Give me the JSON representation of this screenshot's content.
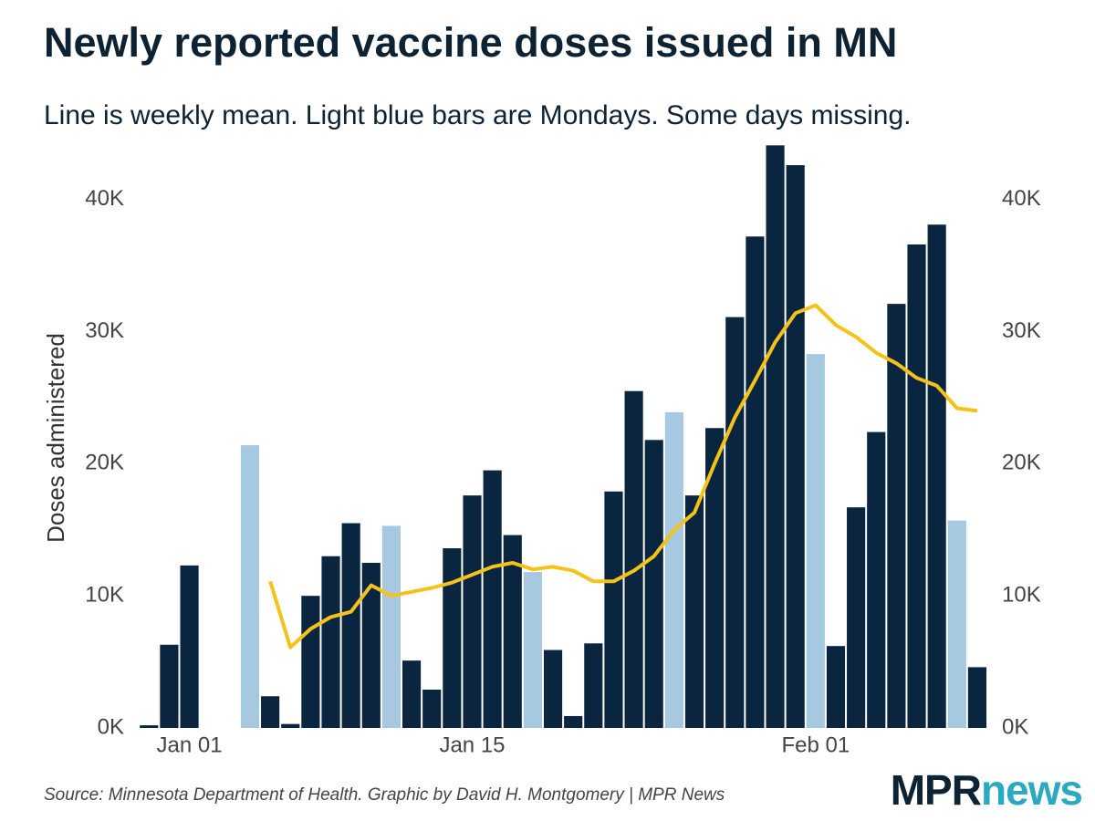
{
  "chart_data": {
    "type": "bar",
    "title": "Newly reported vaccine doses issued in MN",
    "subtitle": "Line is weekly mean. Light blue bars are Mondays. Some days missing.",
    "y_label": "Doses administered",
    "source": "Source: Minnesota Department of Health. Graphic by David H. Montgomery | MPR News",
    "logo": [
      "MPR",
      "news"
    ],
    "logo_colors": [
      "#0d2233",
      "#2aa9c1"
    ],
    "x": [
      -2,
      -1,
      0,
      1,
      2,
      3,
      4,
      5,
      6,
      7,
      8,
      9,
      10,
      11,
      12,
      13,
      14,
      15,
      16,
      17,
      18,
      19,
      20,
      21,
      22,
      23,
      24,
      25,
      26,
      27,
      28,
      29,
      30,
      31,
      32,
      33,
      34,
      35,
      36,
      37,
      38,
      39
    ],
    "xlim": [
      -2.6,
      39.5
    ],
    "xticks": [
      {
        "value": 0,
        "label": "Jan 01"
      },
      {
        "value": 14,
        "label": "Jan 15"
      },
      {
        "value": 31,
        "label": "Feb 01"
      }
    ],
    "ylim": [
      0,
      44400
    ],
    "yticks": [
      {
        "value": 0,
        "label": "0K"
      },
      {
        "value": 10000,
        "label": "10K"
      },
      {
        "value": 20000,
        "label": "20K"
      },
      {
        "value": 30000,
        "label": "30K"
      },
      {
        "value": 40000,
        "label": "40K"
      }
    ],
    "series": [
      {
        "type": "bar",
        "values": [
          200,
          6300,
          12300,
          null,
          null,
          21400,
          2400,
          300,
          10000,
          13000,
          15500,
          12500,
          15300,
          5100,
          2900,
          13600,
          17600,
          19500,
          14600,
          11800,
          5900,
          900,
          6400,
          17900,
          25500,
          21800,
          23900,
          17600,
          22700,
          31100,
          37200,
          44100,
          42600,
          28300,
          6200,
          16700,
          22400,
          32100,
          36600,
          38100,
          15700,
          4600
        ],
        "colors": [
          "#0a2540",
          "#0a2540",
          "#0a2540",
          null,
          null,
          "#a6c8e0",
          "#0a2540",
          "#0a2540",
          "#0a2540",
          "#0a2540",
          "#0a2540",
          "#0a2540",
          "#a6c8e0",
          "#0a2540",
          "#0a2540",
          "#0a2540",
          "#0a2540",
          "#0a2540",
          "#0a2540",
          "#a6c8e0",
          "#0a2540",
          "#0a2540",
          "#0a2540",
          "#0a2540",
          "#0a2540",
          "#0a2540",
          "#a6c8e0",
          "#0a2540",
          "#0a2540",
          "#0a2540",
          "#0a2540",
          "#0a2540",
          "#0a2540",
          "#a6c8e0",
          "#0a2540",
          "#0a2540",
          "#0a2540",
          "#0a2540",
          "#0a2540",
          "#0a2540",
          "#a6c8e0",
          "#0a2540"
        ]
      },
      {
        "type": "line",
        "color": "#f5c218",
        "values": [
          null,
          null,
          null,
          null,
          null,
          null,
          11100,
          6100,
          7500,
          8400,
          8800,
          10800,
          10000,
          10300,
          10600,
          11000,
          11600,
          12200,
          12500,
          12000,
          12200,
          11900,
          11100,
          11100,
          11900,
          13000,
          15000,
          16300,
          20000,
          23500,
          26300,
          29200,
          31400,
          32000,
          30500,
          29600,
          28400,
          27600,
          26500,
          25900,
          24200,
          24000
        ]
      }
    ]
  }
}
